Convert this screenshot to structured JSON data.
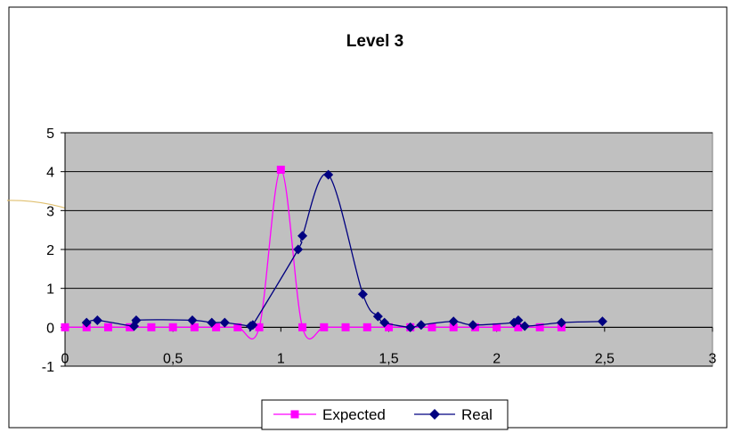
{
  "chart_data": {
    "type": "line",
    "title": "Level 3",
    "xlabel": "",
    "ylabel": "",
    "xlim": [
      0,
      3
    ],
    "ylim": [
      -1,
      5
    ],
    "x_ticks": [
      "0",
      "0,5",
      "1",
      "1,5",
      "2",
      "2,5",
      "3"
    ],
    "y_ticks": [
      "-1",
      "0",
      "1",
      "2",
      "3",
      "4",
      "5"
    ],
    "grid": "horizontal",
    "plot_background": "#c0c0c0",
    "legend_position": "bottom",
    "series": [
      {
        "name": "Expected",
        "color": "#ff00ff",
        "marker": "square",
        "x": [
          0,
          0.1,
          0.2,
          0.3,
          0.4,
          0.5,
          0.6,
          0.7,
          0.8,
          0.9,
          1.0,
          1.1,
          1.2,
          1.3,
          1.4,
          1.5,
          1.6,
          1.7,
          1.8,
          1.9,
          2.0,
          2.1,
          2.2,
          2.3
        ],
        "y": [
          0,
          0,
          0,
          0,
          0,
          0,
          0,
          0,
          0,
          0,
          4.05,
          0,
          0,
          0,
          0,
          0,
          0,
          0,
          0,
          0,
          0,
          0,
          0,
          0
        ]
      },
      {
        "name": "Real",
        "color": "#000080",
        "marker": "diamond",
        "x": [
          0.1,
          0.15,
          0.32,
          0.33,
          0.59,
          0.68,
          0.74,
          0.86,
          0.87,
          1.08,
          1.1,
          1.22,
          1.38,
          1.45,
          1.48,
          1.6,
          1.65,
          1.8,
          1.89,
          2.08,
          2.1,
          2.13,
          2.3,
          2.49
        ],
        "y": [
          0.12,
          0.18,
          0.03,
          0.18,
          0.18,
          0.12,
          0.12,
          0.03,
          0.06,
          2.0,
          2.35,
          3.92,
          0.85,
          0.28,
          0.12,
          0.0,
          0.06,
          0.15,
          0.06,
          0.12,
          0.18,
          0.03,
          0.12,
          0.15
        ]
      }
    ]
  }
}
